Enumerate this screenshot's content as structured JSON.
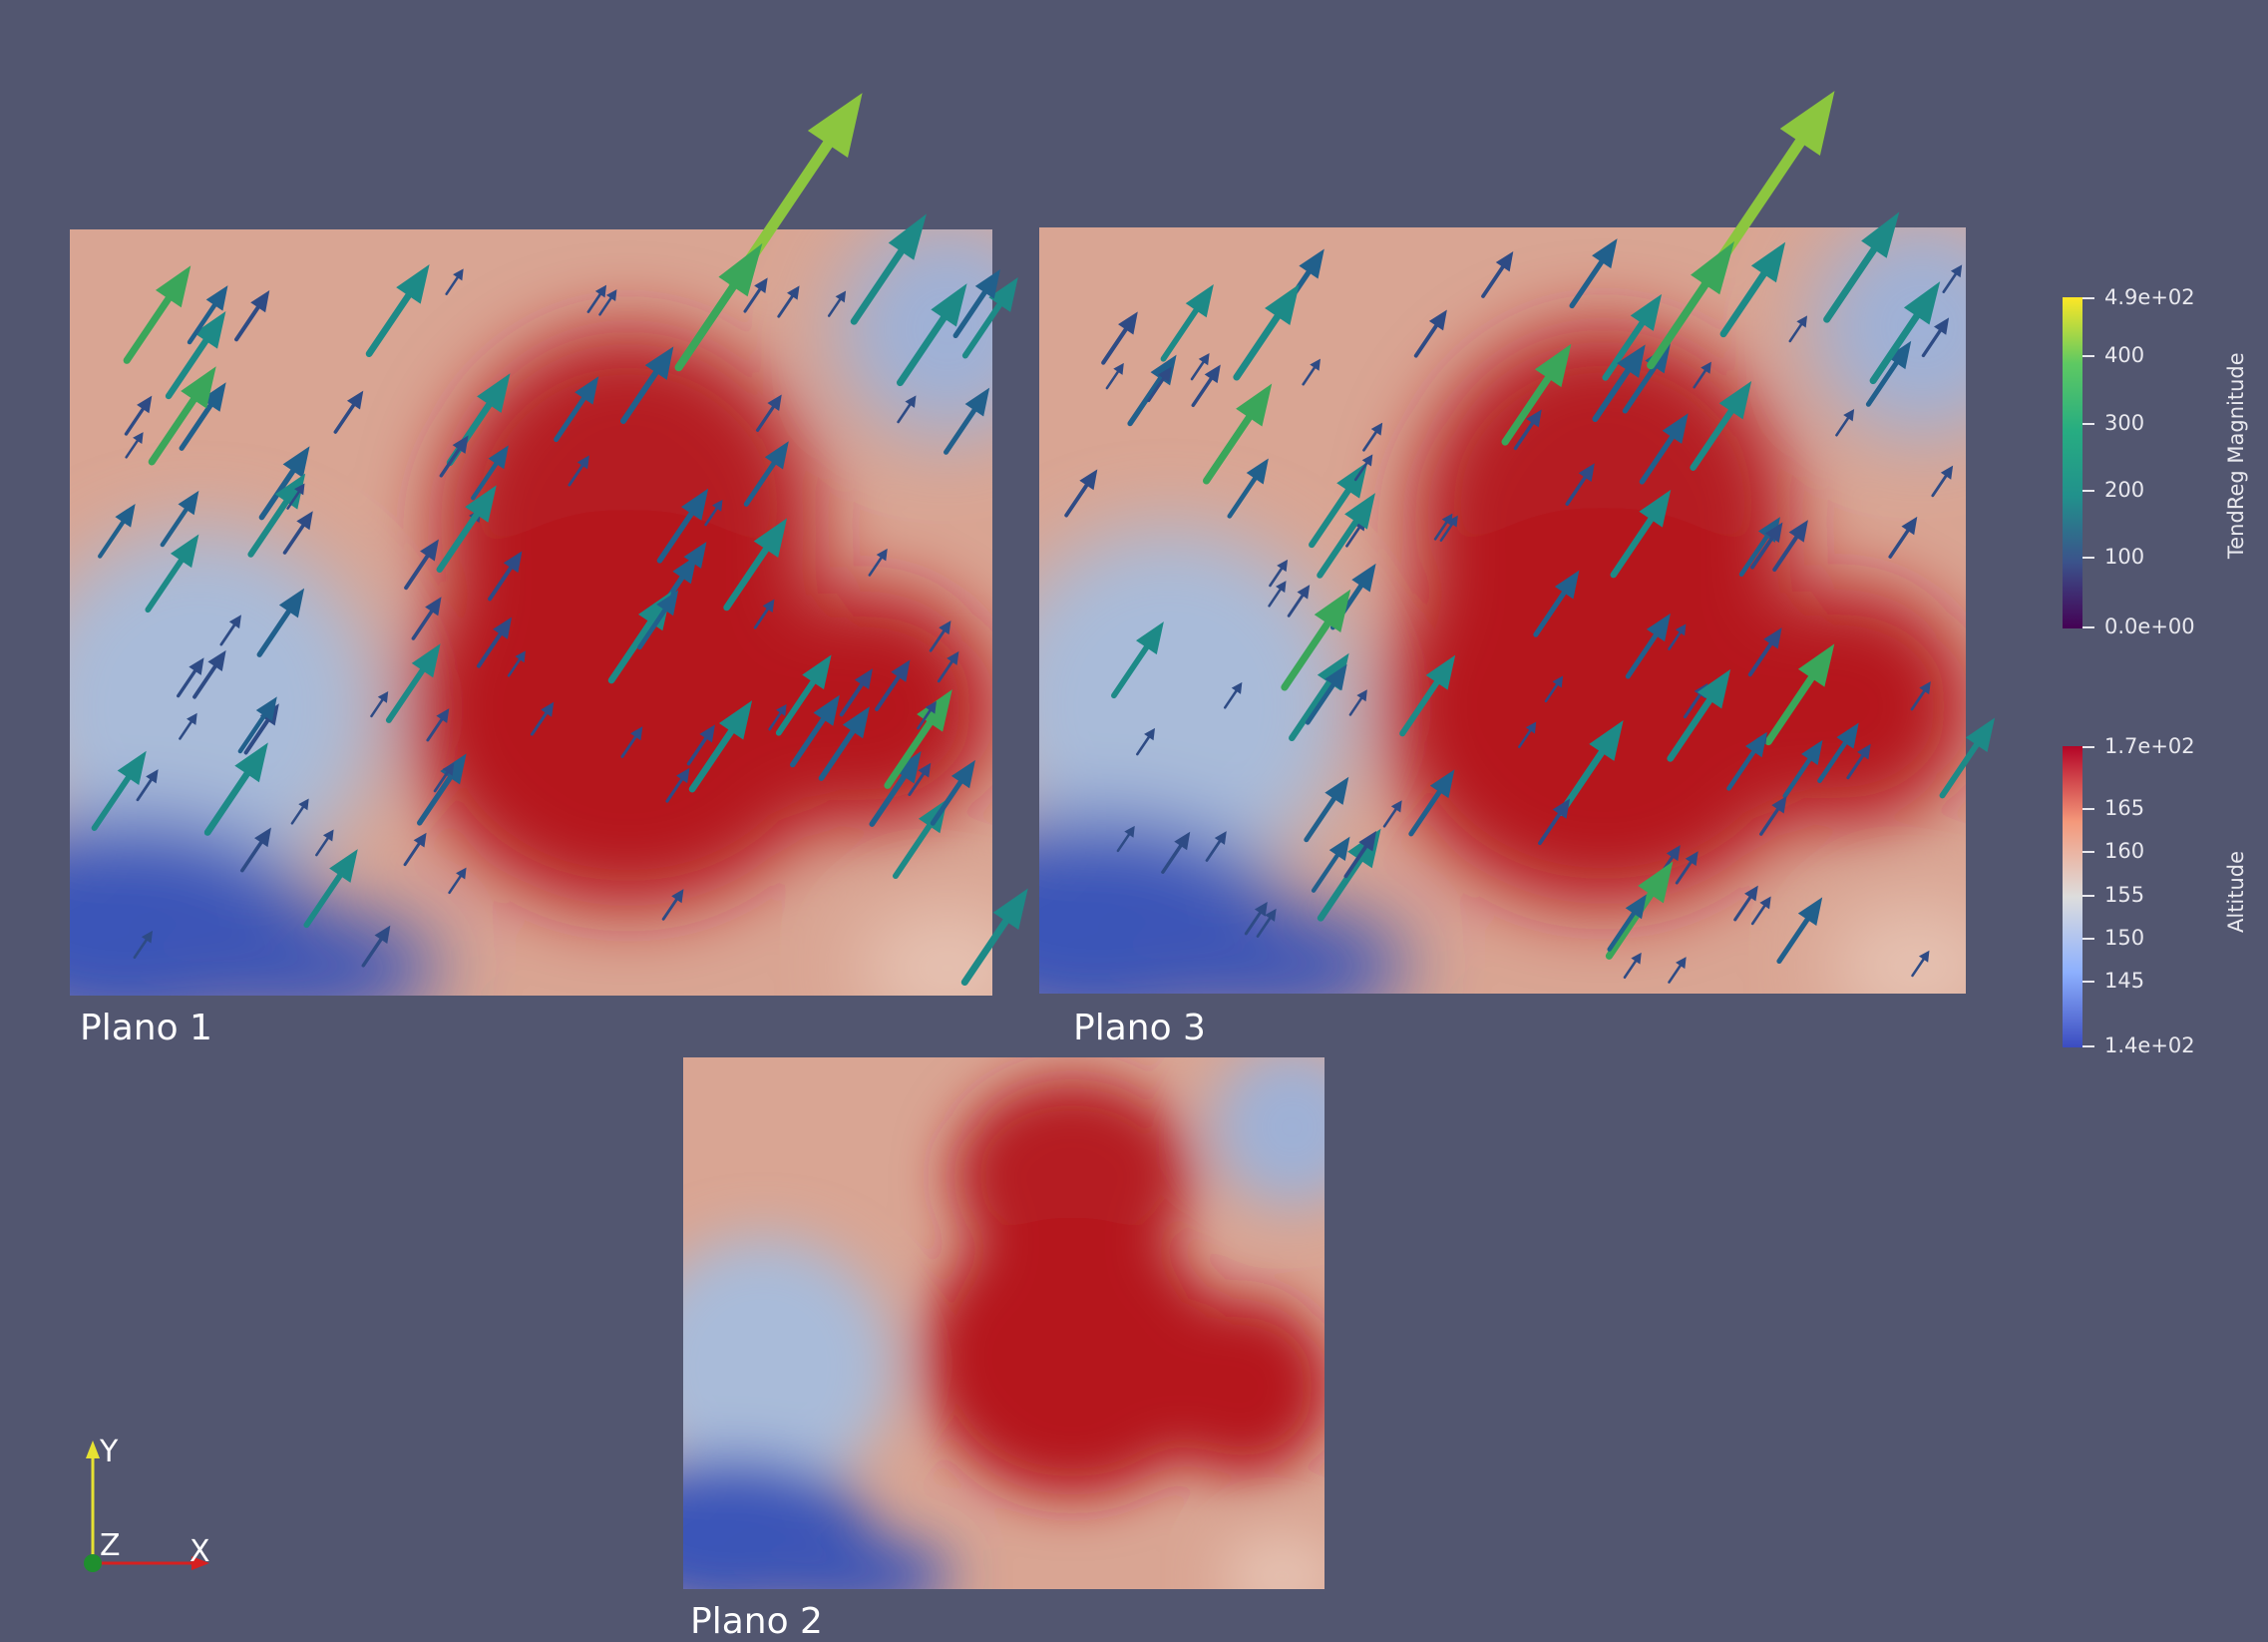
{
  "planes": [
    {
      "id": "plano1",
      "label": "Plano 1"
    },
    {
      "id": "plano3",
      "label": "Plano 3"
    },
    {
      "id": "plano2",
      "label": "Plano 2"
    }
  ],
  "legend_vector": {
    "title": "TendReg Magnitude",
    "ticks": [
      "4.9e+02",
      "400",
      "300",
      "200",
      "100",
      "0.0e+00"
    ],
    "range": [
      0,
      490
    ],
    "colormap": "viridis"
  },
  "legend_scalar": {
    "title": "Altitude",
    "ticks": [
      "1.7e+02",
      "165",
      "160",
      "155",
      "150",
      "145",
      "1.4e+02"
    ],
    "range": [
      140,
      170
    ],
    "colormap": "cool-to-warm"
  },
  "orientation_axes": {
    "y": "Y",
    "z": "Z",
    "x": "X"
  },
  "colors": {
    "background": "#525670",
    "high_altitude": "#b40f1e",
    "low_altitude": "#3a4fb8",
    "mid_altitude": "#e8d0c4"
  }
}
